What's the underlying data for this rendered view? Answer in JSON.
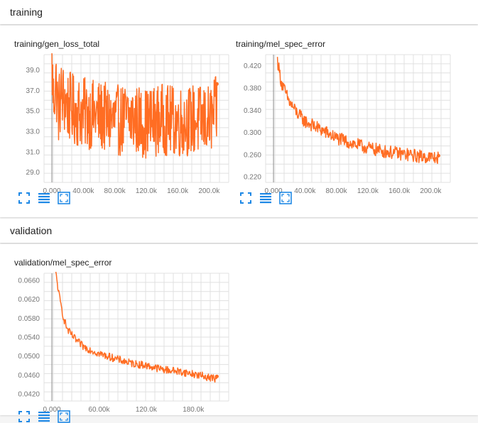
{
  "sections": [
    {
      "title": "training"
    },
    {
      "title": "validation"
    }
  ],
  "colors": {
    "series": "#ff6d23",
    "grid": "#e0e0e0",
    "axis": "#9e9e9e",
    "icon": "#1e88e5"
  },
  "toolbar_icons": [
    "fullscreen-icon",
    "list-icon",
    "fit-domain-icon"
  ],
  "charts": [
    {
      "title": "training/gen_loss_total",
      "chart_data": {
        "type": "line",
        "series": [
          {
            "values_summary": "noisy"
          }
        ],
        "x": [
          0,
          2000,
          5000,
          8000,
          12000,
          20000,
          30000,
          40000,
          60000,
          80000,
          100000,
          120000,
          140000,
          160000,
          180000,
          200000,
          210000
        ],
        "y": [
          39.5,
          36.0,
          38.0,
          35.0,
          36.5,
          35.5,
          35.0,
          34.8,
          34.5,
          34.0,
          34.3,
          33.8,
          34.2,
          33.9,
          34.1,
          34.0,
          35.0
        ],
        "y_spread": 3.5,
        "xlim": [
          -10000,
          225000
        ],
        "ylim": [
          28.0,
          40.5
        ],
        "xticks": [
          "0.000",
          "40.00k",
          "80.00k",
          "120.0k",
          "160.0k",
          "200.0k"
        ],
        "xtick_values": [
          0,
          40000,
          80000,
          120000,
          160000,
          200000
        ],
        "yticks": [
          "29.0",
          "31.0",
          "33.0",
          "35.0",
          "37.0",
          "39.0"
        ],
        "ytick_values": [
          29,
          31,
          33,
          35,
          37,
          39
        ],
        "grid": true,
        "x_end": 210000
      }
    },
    {
      "title": "training/mel_spec_error",
      "chart_data": {
        "type": "line",
        "x": [
          5000,
          10000,
          20000,
          30000,
          40000,
          60000,
          80000,
          100000,
          120000,
          140000,
          160000,
          180000,
          200000,
          210000
        ],
        "y": [
          0.43,
          0.39,
          0.355,
          0.335,
          0.32,
          0.305,
          0.29,
          0.28,
          0.272,
          0.266,
          0.262,
          0.258,
          0.255,
          0.254
        ],
        "y_spread": 0.012,
        "xlim": [
          -10000,
          225000
        ],
        "ylim": [
          0.21,
          0.44
        ],
        "xticks": [
          "0.000",
          "40.00k",
          "80.00k",
          "120.0k",
          "160.0k",
          "200.0k"
        ],
        "xtick_values": [
          0,
          40000,
          80000,
          120000,
          160000,
          200000
        ],
        "yticks": [
          "0.220",
          "0.260",
          "0.300",
          "0.340",
          "0.380",
          "0.420"
        ],
        "ytick_values": [
          0.22,
          0.26,
          0.3,
          0.34,
          0.38,
          0.42
        ],
        "grid": true,
        "x_end": 210000
      }
    },
    {
      "title": "validation/mel_spec_error",
      "chart_data": {
        "type": "line",
        "x": [
          5000,
          10000,
          15000,
          20000,
          30000,
          40000,
          60000,
          80000,
          100000,
          120000,
          140000,
          160000,
          180000,
          200000,
          210000
        ],
        "y": [
          0.0675,
          0.062,
          0.058,
          0.0555,
          0.0535,
          0.052,
          0.0505,
          0.0495,
          0.0485,
          0.048,
          0.0472,
          0.0468,
          0.0462,
          0.0455,
          0.0452
        ],
        "y_spread": 0.0008,
        "xlim": [
          -10000,
          225000
        ],
        "ylim": [
          0.0405,
          0.0675
        ],
        "xticks": [
          "0.000",
          "60.00k",
          "120.0k",
          "180.0k"
        ],
        "xtick_values": [
          0,
          60000,
          120000,
          180000
        ],
        "yticks": [
          "0.0420",
          "0.0460",
          "0.0500",
          "0.0540",
          "0.0580",
          "0.0620",
          "0.0660"
        ],
        "ytick_values": [
          0.042,
          0.046,
          0.05,
          0.054,
          0.058,
          0.062,
          0.066
        ],
        "grid": true,
        "x_end": 210000
      }
    }
  ]
}
